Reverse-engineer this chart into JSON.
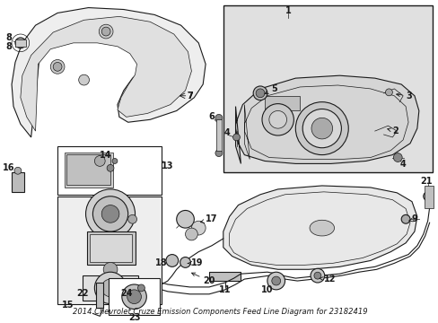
{
  "title": "2014 Chevrolet Cruze Emission Components Feed Line Diagram for 23182419",
  "background_color": "#ffffff",
  "fig_width": 4.89,
  "fig_height": 3.6,
  "dpi": 100,
  "lc": "#1a1a1a",
  "tc": "#1a1a1a",
  "label_fontsize": 7.0,
  "title_fontsize": 6.0,
  "shaded_bg": "#d8d8d8"
}
